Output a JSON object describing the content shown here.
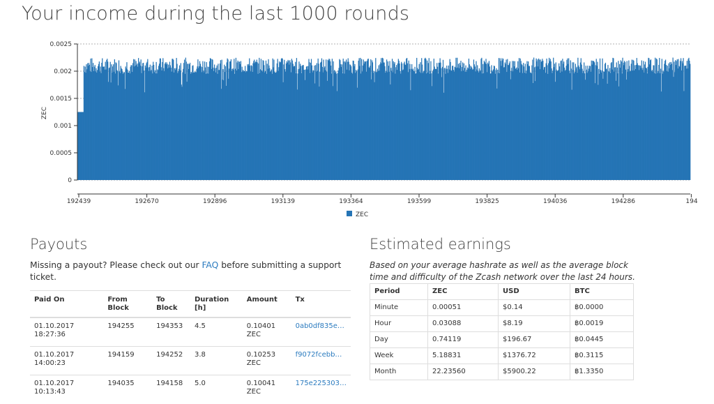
{
  "page_title": "Your income during the last 1000 rounds",
  "chart_data": {
    "type": "bar",
    "title": "",
    "ylabel": "ZEC",
    "xlabel": "",
    "color": "#2574b5",
    "ylim": [
      0,
      0.0025
    ],
    "yticks": [
      0,
      0.0005,
      0.001,
      0.0015,
      0.002,
      0.0025
    ],
    "ytick_labels": [
      "0",
      "0.0005",
      "0.001",
      "0.0015",
      "0.002",
      "0.0025"
    ],
    "xticks": [
      "192439",
      "192670",
      "192896",
      "193139",
      "193364",
      "193599",
      "193825",
      "194036",
      "194286",
      "194"
    ],
    "legend": "ZEC",
    "legend_position": "bottom-center",
    "grid": "horizontal dashed",
    "n_bars": 1000,
    "series": [
      {
        "name": "ZEC",
        "profile": [
          {
            "from": 0,
            "to": 10,
            "value": 0.00125
          },
          {
            "from": 10,
            "to": 1000,
            "value": 0.0021
          }
        ]
      }
    ]
  },
  "payouts": {
    "title": "Payouts",
    "note_before": "Missing a payout? Please check out our ",
    "note_link": "FAQ",
    "note_after": " before submitting a support ticket.",
    "columns": [
      "Paid On",
      "From Block",
      "To Block",
      "Duration [h]",
      "Amount",
      "Tx"
    ],
    "rows": [
      {
        "date": "01.10.2017",
        "time": "18:27:36",
        "from": "194255",
        "to": "194353",
        "duration": "4.5",
        "amount": "0.10401",
        "unit": "ZEC",
        "tx": "0ab0df835e…"
      },
      {
        "date": "01.10.2017",
        "time": "14:00:23",
        "from": "194159",
        "to": "194252",
        "duration": "3.8",
        "amount": "0.10253",
        "unit": "ZEC",
        "tx": "f9072fcebb…"
      },
      {
        "date": "01.10.2017",
        "time": "10:13:43",
        "from": "194035",
        "to": "194158",
        "duration": "5.0",
        "amount": "0.10041",
        "unit": "ZEC",
        "tx": "175e225303…"
      }
    ]
  },
  "earnings": {
    "title": "Estimated earnings",
    "note": "Based on your average hashrate as well as the average block time and difficulty of the Zcash network over the last 24 hours.",
    "columns": [
      "Period",
      "ZEC",
      "USD",
      "BTC"
    ],
    "rows": [
      {
        "period": "Minute",
        "zec": "0.00051",
        "usd": "$0.14",
        "btc": "฿0.0000"
      },
      {
        "period": "Hour",
        "zec": "0.03088",
        "usd": "$8.19",
        "btc": "฿0.0019"
      },
      {
        "period": "Day",
        "zec": "0.74119",
        "usd": "$196.67",
        "btc": "฿0.0445"
      },
      {
        "period": "Week",
        "zec": "5.18831",
        "usd": "$1376.72",
        "btc": "฿0.3115"
      },
      {
        "period": "Month",
        "zec": "22.23560",
        "usd": "$5900.22",
        "btc": "฿1.3350"
      }
    ]
  }
}
